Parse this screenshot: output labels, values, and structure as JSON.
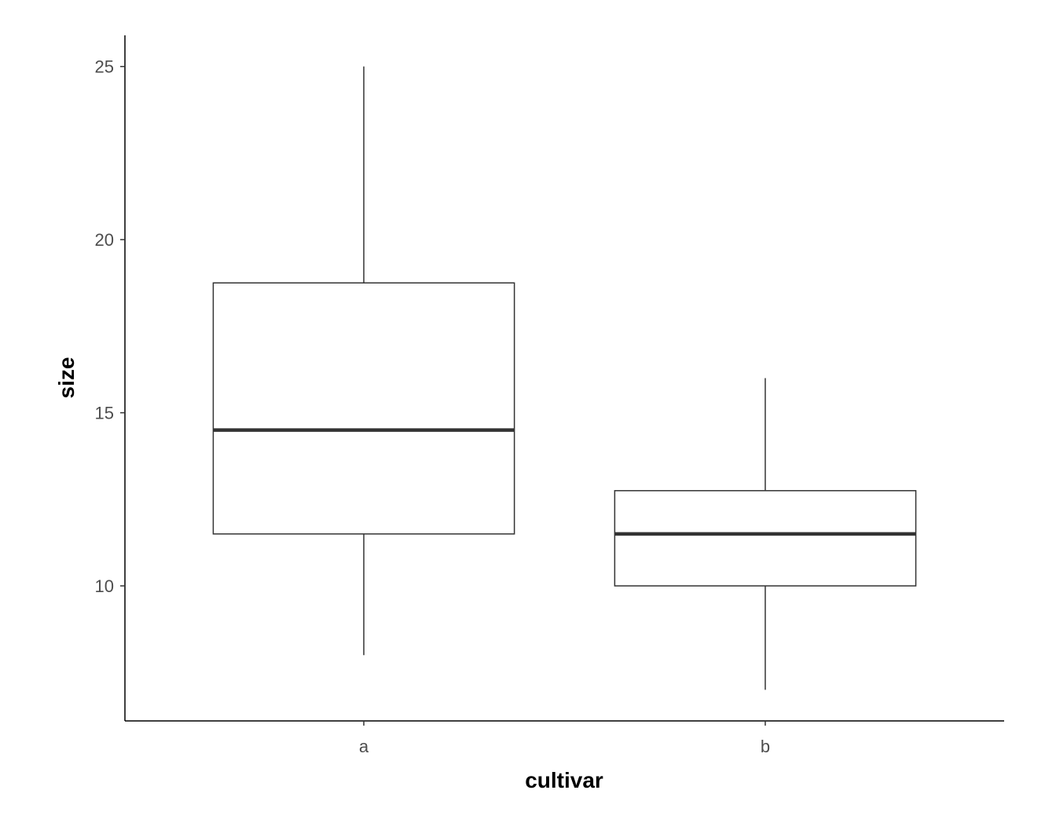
{
  "chart_data": {
    "type": "boxplot",
    "title": "",
    "xlabel": "cultivar",
    "ylabel": "size",
    "categories": [
      "a",
      "b"
    ],
    "boxes": [
      {
        "category": "a",
        "whisker_low": 8,
        "q1": 11.5,
        "median": 14.5,
        "q3": 18.75,
        "whisker_high": 25
      },
      {
        "category": "b",
        "whisker_low": 7,
        "q1": 10,
        "median": 11.5,
        "q3": 12.75,
        "whisker_high": 16
      }
    ],
    "yticks": [
      10,
      15,
      20,
      25
    ],
    "ylim": [
      6.1,
      25.9
    ],
    "grid": false,
    "colors": {
      "box_fill": "#ffffff",
      "box_line": "#333333",
      "axis": "#000000"
    }
  }
}
